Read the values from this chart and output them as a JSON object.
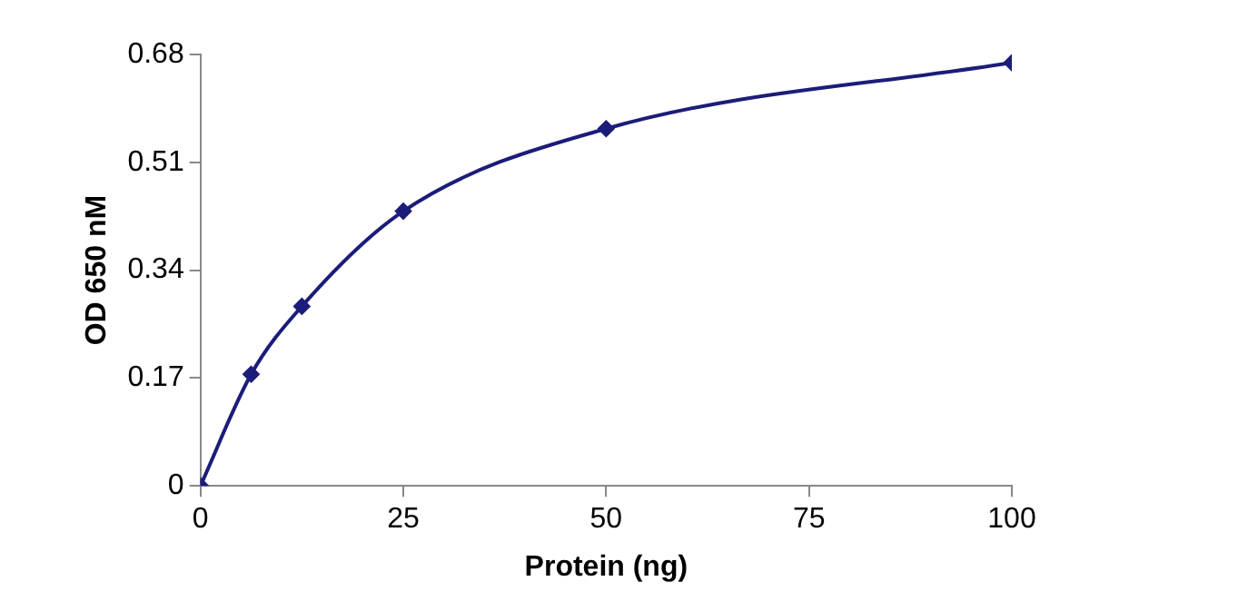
{
  "chart_data": {
    "type": "line",
    "xlabel": "Protein (ng)",
    "ylabel": "OD 650 nM",
    "x": [
      0,
      6.25,
      12.5,
      25,
      50,
      100
    ],
    "series": [
      {
        "color": "#1c1c7a",
        "values": [
          0,
          0.176,
          0.283,
          0.433,
          0.563,
          0.667
        ]
      }
    ],
    "xlim": [
      0,
      100
    ],
    "xticks": [
      0,
      25,
      50,
      75,
      100
    ],
    "ylim": [
      0,
      0.68
    ],
    "yticks": [
      0,
      0.17,
      0.34,
      0.51,
      0.68
    ],
    "grid": false,
    "legend": false,
    "marker": "diamond",
    "line_style": "solid"
  }
}
